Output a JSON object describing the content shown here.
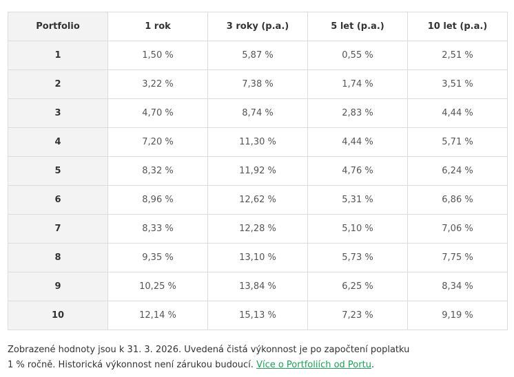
{
  "table": {
    "header": [
      "Portfolio",
      "1 rok",
      "3 roky (p.a.)",
      "5 let (p.a.)",
      "10 let (p.a.)"
    ],
    "rows": [
      [
        "1",
        "1,50 %",
        "5,87 %",
        "0,55 %",
        "2,51 %"
      ],
      [
        "2",
        "3,22 %",
        "7,38 %",
        "1,74 %",
        "3,51 %"
      ],
      [
        "3",
        "4,70 %",
        "8,74 %",
        "2,83 %",
        "4,44 %"
      ],
      [
        "4",
        "7,20 %",
        "11,30 %",
        "4,44 %",
        "5,71 %"
      ],
      [
        "5",
        "8,32 %",
        "11,92 %",
        "4,76 %",
        "6,24 %"
      ],
      [
        "6",
        "8,96 %",
        "12,62 %",
        "5,31 %",
        "6,86 %"
      ],
      [
        "7",
        "8,33 %",
        "12,28 %",
        "5,10 %",
        "7,06 %"
      ],
      [
        "8",
        "9,35 %",
        "13,10 %",
        "5,73 %",
        "7,75 %"
      ],
      [
        "9",
        "10,25 %",
        "13,84 %",
        "6,25 %",
        "8,34 %"
      ],
      [
        "10",
        "12,14 %",
        "15,13 %",
        "7,23 %",
        "9,19 %"
      ]
    ]
  },
  "footnote": {
    "lines": [
      "Zobrazené hodnoty jsou k 31. 3. 2026. Uvedená čistá výkonnost je po započtení poplatku",
      "1 % ročně. Historická výkonnost není zárukou budoucí."
    ],
    "link": "Více o Portfoliích od Portu",
    "end": "."
  }
}
